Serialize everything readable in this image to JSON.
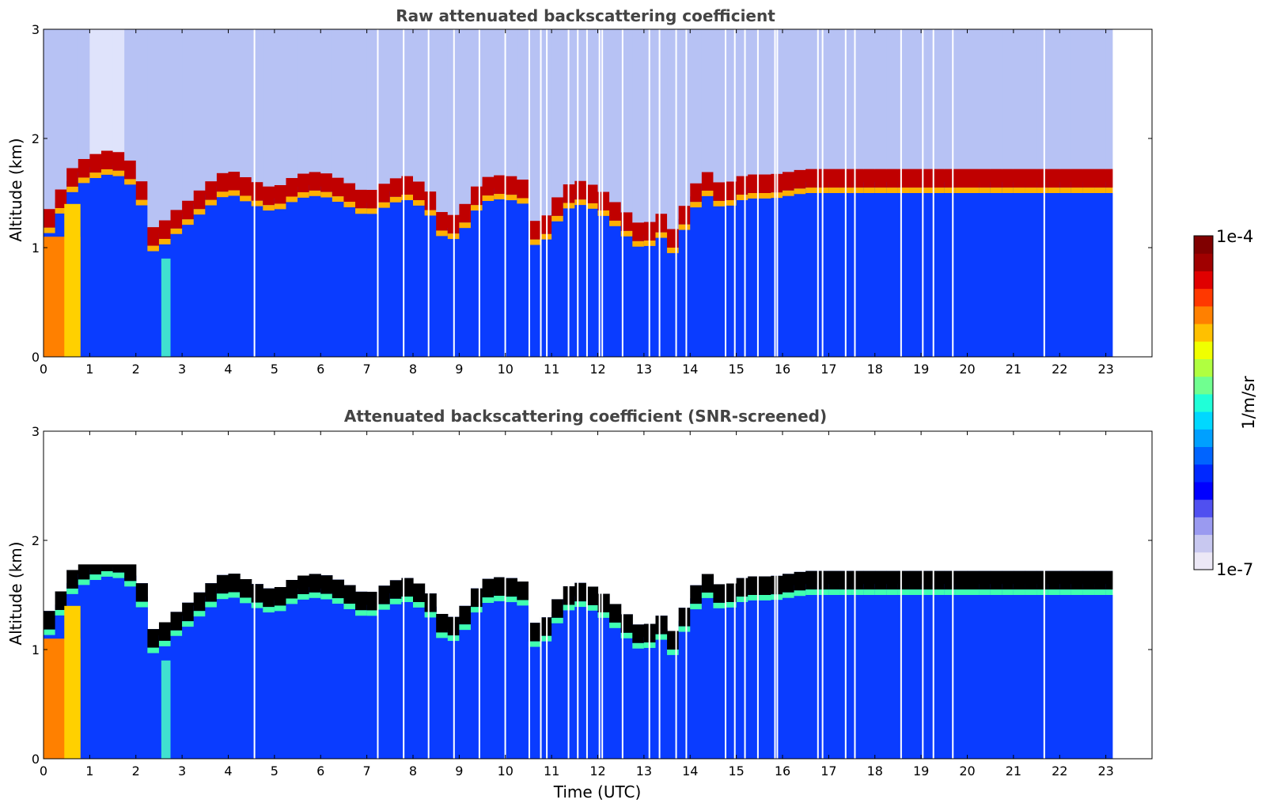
{
  "colorbar": {
    "label": "1/m/sr",
    "max_label": "1e-4",
    "min_label": "1e-7",
    "scale": "log",
    "range": [
      1e-07,
      0.0001
    ],
    "colormap": [
      "#ece8f6",
      "#c8c8f0",
      "#9a9af0",
      "#5050f0",
      "#0000ff",
      "#0028ff",
      "#0064ff",
      "#00a0ff",
      "#00d8ff",
      "#20ffd8",
      "#70ff90",
      "#b0ff40",
      "#f0ff00",
      "#ffc000",
      "#ff8000",
      "#ff3800",
      "#e00000",
      "#a00000",
      "#800000"
    ]
  },
  "chart_data": [
    {
      "type": "heatmap",
      "title": "Raw attenuated backscattering coefficient",
      "ylabel": "Altitude (km)",
      "xlabel": "",
      "xlim": [
        0,
        24
      ],
      "ylim": [
        0,
        3
      ],
      "xticks": [
        "0",
        "1",
        "2",
        "3",
        "4",
        "5",
        "6",
        "7",
        "8",
        "9",
        "10",
        "11",
        "12",
        "13",
        "14",
        "15",
        "16",
        "17",
        "18",
        "19",
        "20",
        "21",
        "22",
        "23"
      ],
      "yticks": [
        "0",
        "1",
        "2",
        "3"
      ],
      "data_end_time": 23.15,
      "gap_times": [
        4.55,
        7.22,
        7.78,
        8.32,
        8.87,
        9.42,
        9.98,
        10.5,
        10.75,
        10.88,
        11.35,
        11.55,
        11.75,
        12.02,
        12.08,
        12.52,
        13.1,
        13.32,
        13.68,
        13.9,
        14.75,
        14.95,
        15.17,
        15.45,
        15.82,
        15.87,
        16.75,
        16.85,
        17.35,
        17.55,
        18.55,
        19.02,
        19.25,
        19.67,
        21.65
      ],
      "cloud_base_km": {
        "time": [
          0.0,
          0.3,
          0.6,
          0.9,
          1.2,
          1.5,
          1.8,
          2.1,
          2.3,
          2.6,
          2.8,
          3.1,
          3.5,
          4.0,
          4.5,
          5.0,
          5.5,
          6.0,
          6.5,
          7.0,
          7.3,
          7.8,
          8.3,
          8.7,
          9.0,
          9.5,
          10.0,
          10.4,
          10.7,
          10.9,
          11.3,
          11.7,
          12.1,
          12.5,
          12.9,
          13.2,
          13.4,
          13.7,
          13.9,
          14.3,
          14.7,
          15.2,
          15.8,
          16.5,
          17.5,
          18.6
        ],
        "altitude": [
          1.15,
          1.35,
          1.6,
          1.7,
          1.75,
          1.78,
          1.72,
          1.55,
          1.05,
          1.12,
          1.2,
          1.3,
          1.45,
          1.6,
          1.5,
          1.42,
          1.55,
          1.58,
          1.5,
          1.38,
          1.45,
          1.55,
          1.45,
          1.15,
          1.2,
          1.52,
          1.55,
          1.5,
          1.0,
          1.2,
          1.45,
          1.5,
          1.4,
          1.25,
          1.1,
          1.12,
          1.2,
          1.0,
          1.3,
          1.6,
          1.45,
          1.55,
          1.55,
          1.6,
          1.6,
          1.6
        ]
      }
    },
    {
      "type": "heatmap",
      "title": "Attenuated backscattering coefficient (SNR-screened)",
      "ylabel": "Altitude (km)",
      "xlabel": "Time (UTC)",
      "xlim": [
        0,
        24
      ],
      "ylim": [
        0,
        3
      ],
      "xticks": [
        "0",
        "1",
        "2",
        "3",
        "4",
        "5",
        "6",
        "7",
        "8",
        "9",
        "10",
        "11",
        "12",
        "13",
        "14",
        "15",
        "16",
        "17",
        "18",
        "19",
        "20",
        "21",
        "22",
        "23"
      ],
      "yticks": [
        "0",
        "1",
        "2",
        "3"
      ],
      "data_end_time": 23.15,
      "screened_top_km": 1.75
    }
  ]
}
